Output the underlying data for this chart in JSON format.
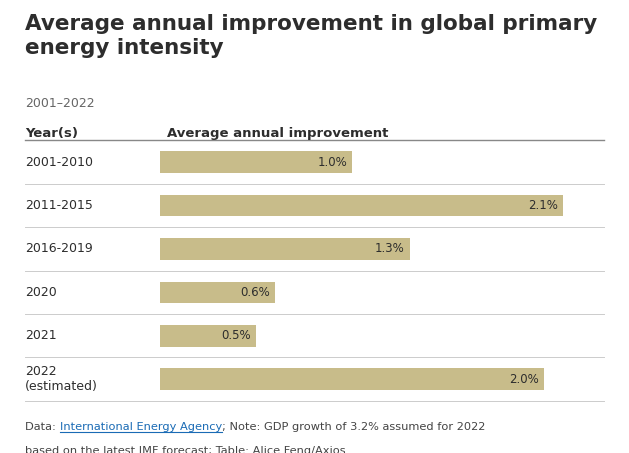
{
  "title": "Average annual improvement in global primary\nenergy intensity",
  "subtitle": "2001–2022",
  "col_header_left": "Year(s)",
  "col_header_right": "Average annual improvement",
  "categories": [
    "2001-2010",
    "2011-2015",
    "2016-2019",
    "2020",
    "2021",
    "2022\n(estimated)"
  ],
  "values": [
    1.0,
    2.1,
    1.3,
    0.6,
    0.5,
    2.0
  ],
  "labels": [
    "1.0%",
    "2.1%",
    "1.3%",
    "0.6%",
    "0.5%",
    "2.0%"
  ],
  "bar_color": "#C8BC8A",
  "x_max": 2.3,
  "footnote_prefix": "Data: ",
  "footnote_link": "International Energy Agency",
  "footnote_suffix": "; Note: GDP growth of 3.2% assumed for 2022",
  "footnote_line2": "based on the latest IMF forecast; Table: Alice Feng/Axios",
  "background_color": "#ffffff",
  "text_color": "#2d2d2d",
  "subtitle_color": "#666666",
  "footnote_color": "#444444",
  "link_color": "#1a6bb5",
  "divider_color": "#cccccc",
  "header_divider_color": "#888888"
}
